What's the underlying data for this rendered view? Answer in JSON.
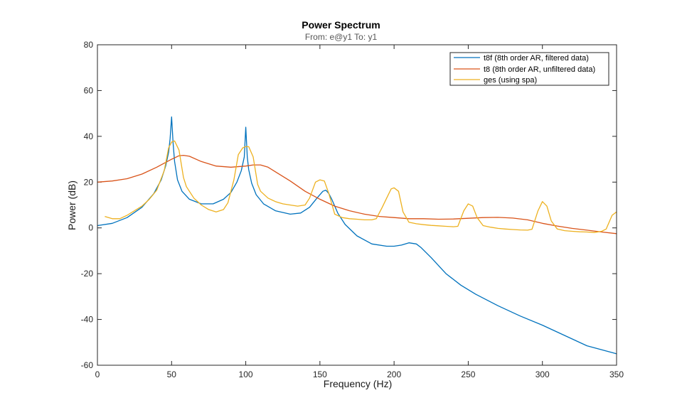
{
  "chart_data": {
    "type": "line",
    "title": "Power Spectrum",
    "subtitle": "From: e@y1  To: y1",
    "xlabel": "Frequency  (Hz)",
    "ylabel": "Power (dB)",
    "xlim": [
      0,
      350
    ],
    "ylim": [
      -60,
      80
    ],
    "xticks": [
      0,
      50,
      100,
      150,
      200,
      250,
      300,
      350
    ],
    "yticks": [
      -60,
      -40,
      -20,
      0,
      20,
      40,
      60,
      80
    ],
    "legend_position": "top-right",
    "series": [
      {
        "name": "t8f (8th order AR, filtered data)",
        "color": "#0072BD",
        "x": [
          0,
          10,
          20,
          30,
          38,
          43,
          46,
          48,
          49,
          50,
          51,
          52,
          54,
          57,
          62,
          70,
          78,
          85,
          90,
          94,
          97,
          99,
          100,
          101,
          102,
          104,
          107,
          112,
          120,
          130,
          137,
          143,
          148,
          152,
          154,
          156,
          158,
          162,
          167,
          175,
          185,
          195,
          200,
          205,
          210,
          215,
          218,
          225,
          235,
          245,
          255,
          270,
          285,
          300,
          315,
          330,
          350
        ],
        "values": [
          1,
          2,
          4.5,
          9,
          15,
          21,
          27,
          33,
          39,
          48.5,
          37,
          29,
          21,
          16,
          12.5,
          10.5,
          10.5,
          12.5,
          15.5,
          20,
          25,
          31,
          44,
          31,
          25.5,
          19.5,
          14.5,
          10.5,
          7.5,
          6,
          6.5,
          9,
          13,
          16,
          16.5,
          15,
          12.5,
          6.5,
          1.5,
          -3.5,
          -7,
          -8,
          -8,
          -7.5,
          -6.5,
          -7,
          -8.5,
          -13,
          -20,
          -25,
          -29,
          -34,
          -38.5,
          -42.5,
          -47,
          -51.5,
          -55
        ]
      },
      {
        "name": "t8 (8th order AR, unfiltered data)",
        "color": "#D95319",
        "x": [
          0,
          10,
          20,
          30,
          40,
          50,
          55,
          58,
          62,
          70,
          80,
          90,
          100,
          105,
          110,
          115,
          120,
          130,
          140,
          150,
          160,
          170,
          180,
          190,
          200,
          210,
          220,
          230,
          240,
          250,
          260,
          270,
          280,
          290,
          300,
          310,
          320,
          330,
          340,
          350
        ],
        "values": [
          20,
          20.5,
          21.5,
          23.5,
          26.5,
          30,
          31.5,
          31.7,
          31.3,
          29,
          27,
          26.5,
          27,
          27.5,
          27.5,
          26.5,
          24.5,
          20.5,
          16,
          12.5,
          9.5,
          7.5,
          6,
          5,
          4.5,
          4,
          4,
          3.8,
          3.9,
          4.2,
          4.5,
          4.6,
          4.3,
          3.5,
          2,
          0.8,
          -0.2,
          -1,
          -1.8,
          -2.5
        ]
      },
      {
        "name": "ges (using spa)",
        "color": "#EDB120",
        "x": [
          5,
          10,
          15,
          20,
          25,
          30,
          35,
          40,
          45,
          48,
          50,
          52,
          55,
          58,
          60,
          65,
          70,
          75,
          80,
          85,
          88,
          92,
          95,
          98,
          100,
          102,
          105,
          108,
          110,
          115,
          120,
          125,
          130,
          135,
          140,
          143,
          147,
          150,
          153,
          156,
          160,
          165,
          170,
          175,
          180,
          185,
          188,
          192,
          195,
          198,
          200,
          203,
          206,
          210,
          215,
          220,
          225,
          230,
          235,
          240,
          243,
          247,
          250,
          253,
          256,
          260,
          265,
          270,
          275,
          280,
          285,
          290,
          293,
          297,
          300,
          303,
          306,
          310,
          315,
          320,
          325,
          330,
          335,
          340,
          343,
          347,
          350
        ],
        "values": [
          5,
          4,
          4,
          5.5,
          7.5,
          9.5,
          12.5,
          16.5,
          25,
          35,
          37.5,
          38,
          34,
          22,
          18,
          13,
          10,
          8,
          7,
          8,
          11,
          21,
          32,
          35,
          35.5,
          35.5,
          31,
          19,
          16,
          13,
          11.5,
          10.5,
          10,
          9.5,
          10,
          13,
          20,
          21,
          20.5,
          15,
          6,
          4.5,
          4,
          3.8,
          3.5,
          3.5,
          4,
          9,
          13,
          17,
          17.5,
          16,
          7,
          2.5,
          1.8,
          1.4,
          1.1,
          0.9,
          0.7,
          0.5,
          0.7,
          7.5,
          10.5,
          9.5,
          4.5,
          1,
          0.3,
          -0.2,
          -0.5,
          -0.7,
          -0.9,
          -1,
          -0.6,
          7.5,
          11.5,
          9.5,
          3,
          -0.5,
          -1.2,
          -1.5,
          -1.7,
          -1.8,
          -2,
          -1.5,
          -0.5,
          5.5,
          7
        ]
      }
    ]
  }
}
